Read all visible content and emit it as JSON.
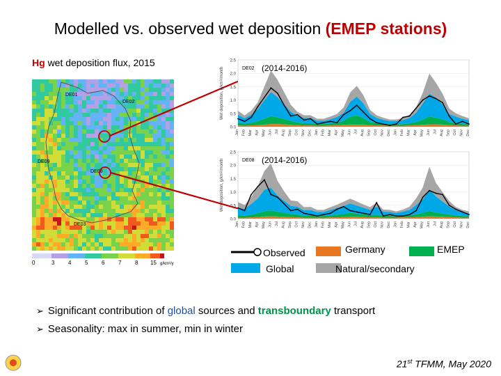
{
  "slide": {
    "title_main": "Modelled vs. observed wet deposition",
    "title_accent": "(EMEP stations)",
    "map_label_hg": "Hg",
    "map_label_rest": "wet deposition flux, 2015",
    "footer_number": "21",
    "footer_suffix": "st",
    "footer_rest": "TFMM, May 2020",
    "bullets": [
      {
        "prefix": "Significant contribution of ",
        "global": "global",
        "mid": " sources and ",
        "transboundary": "transboundary",
        "suffix": " transport"
      },
      {
        "text": "Seasonality: max in summer, min in winter"
      }
    ]
  },
  "map": {
    "station_labels": [
      "DE01",
      "DE02",
      "DE03",
      "DE08",
      "DE09"
    ],
    "colorbar_ticks": [
      "0",
      "3",
      "4",
      "5",
      "6",
      "7",
      "8",
      "15"
    ],
    "colorbar_unit": "g/km²/y",
    "colorbar_colors": [
      "#d9d9f5",
      "#b4a0e6",
      "#64b4f5",
      "#32c8a0",
      "#78d24b",
      "#d2dc37",
      "#ffaa28",
      "#f05a1e",
      "#c81414"
    ]
  },
  "legend": {
    "observed": "Observed",
    "global": "Global",
    "germany": "Germany",
    "natural": "Natural/secondary",
    "emep": "EMEP"
  },
  "colors": {
    "accent_red": "#c00000",
    "global": "#00a8e8",
    "germany": "#e87722",
    "natural": "#a6a6a6",
    "emep": "#00b050",
    "observed": "#000000"
  },
  "chart_data": [
    {
      "type": "area",
      "station": "DE02",
      "period": "(2014-2016)",
      "ylabel": "Wet deposition, g/km²/month",
      "ylim": [
        0,
        2.5
      ],
      "yticks": [
        "0.0",
        "0.5",
        "1.0",
        "1.5",
        "2.0",
        "2.5"
      ],
      "categories": [
        "Jan",
        "Feb",
        "Mar",
        "Apr",
        "May",
        "Jun",
        "Jul",
        "Aug",
        "Sep",
        "Oct",
        "Nov",
        "Dec",
        "Jan",
        "Feb",
        "Mar",
        "Apr",
        "May",
        "Jun",
        "Jul",
        "Aug",
        "Sep",
        "Oct",
        "Nov",
        "Dec",
        "Jan",
        "Feb",
        "Mar",
        "Apr",
        "May",
        "Jun",
        "Jul",
        "Aug",
        "Sep",
        "Oct",
        "Nov",
        "Dec"
      ],
      "series": [
        {
          "name": "Germany",
          "values": [
            0.05,
            0.04,
            0.05,
            0.06,
            0.08,
            0.1,
            0.1,
            0.09,
            0.07,
            0.06,
            0.05,
            0.05,
            0.04,
            0.04,
            0.05,
            0.06,
            0.07,
            0.08,
            0.08,
            0.08,
            0.06,
            0.05,
            0.05,
            0.04,
            0.04,
            0.04,
            0.05,
            0.06,
            0.07,
            0.09,
            0.09,
            0.08,
            0.06,
            0.05,
            0.04,
            0.04
          ]
        },
        {
          "name": "EMEP",
          "values": [
            0.1,
            0.08,
            0.1,
            0.15,
            0.22,
            0.3,
            0.25,
            0.2,
            0.15,
            0.1,
            0.08,
            0.08,
            0.06,
            0.06,
            0.08,
            0.1,
            0.15,
            0.3,
            0.35,
            0.25,
            0.12,
            0.08,
            0.06,
            0.05,
            0.05,
            0.06,
            0.08,
            0.12,
            0.2,
            0.3,
            0.25,
            0.2,
            0.12,
            0.08,
            0.06,
            0.05
          ]
        },
        {
          "name": "Global",
          "values": [
            0.3,
            0.2,
            0.3,
            0.45,
            0.7,
            0.9,
            0.75,
            0.55,
            0.35,
            0.25,
            0.2,
            0.2,
            0.12,
            0.12,
            0.15,
            0.2,
            0.3,
            0.55,
            0.7,
            0.55,
            0.3,
            0.2,
            0.15,
            0.12,
            0.12,
            0.15,
            0.2,
            0.35,
            0.6,
            0.85,
            0.75,
            0.55,
            0.3,
            0.25,
            0.2,
            0.15
          ]
        },
        {
          "name": "Natural/secondary",
          "values": [
            0.15,
            0.1,
            0.15,
            0.25,
            0.5,
            0.8,
            0.65,
            0.45,
            0.25,
            0.15,
            0.1,
            0.1,
            0.08,
            0.08,
            0.1,
            0.12,
            0.2,
            0.35,
            0.4,
            0.3,
            0.15,
            0.1,
            0.08,
            0.06,
            0.06,
            0.08,
            0.12,
            0.2,
            0.4,
            0.75,
            0.55,
            0.4,
            0.2,
            0.12,
            0.1,
            0.08
          ]
        }
      ],
      "observed": [
        0.3,
        0.2,
        0.35,
        0.75,
        1.1,
        1.45,
        1.25,
        0.8,
        0.4,
        0.45,
        0.25,
        0.3,
        0.1,
        0.15,
        0.2,
        0.15,
        0.45,
        0.6,
        0.8,
        0.55,
        0.3,
        0.15,
        0.1,
        0.05,
        0.1,
        0.35,
        0.4,
        0.7,
        1.0,
        1.15,
        1.05,
        0.9,
        0.4,
        0.1,
        0.2,
        0.1
      ]
    },
    {
      "type": "area",
      "station": "DE08",
      "period": "(2014-2016)",
      "ylabel": "Wet deposition, g/km²/month",
      "ylim": [
        0,
        2.5
      ],
      "yticks": [
        "0.0",
        "0.5",
        "1.0",
        "1.5",
        "2.0",
        "2.5"
      ],
      "categories": [
        "Jan",
        "Feb",
        "Mar",
        "Apr",
        "May",
        "Jun",
        "Jul",
        "Aug",
        "Sep",
        "Oct",
        "Nov",
        "Dec",
        "Jan",
        "Feb",
        "Mar",
        "Apr",
        "May",
        "Jun",
        "Jul",
        "Aug",
        "Sep",
        "Oct",
        "Nov",
        "Dec",
        "Jan",
        "Feb",
        "Mar",
        "Apr",
        "May",
        "Jun",
        "Jul",
        "Aug",
        "Sep",
        "Oct",
        "Nov",
        "Dec"
      ],
      "series": [
        {
          "name": "Germany",
          "values": [
            0.04,
            0.04,
            0.05,
            0.06,
            0.08,
            0.09,
            0.08,
            0.07,
            0.06,
            0.05,
            0.04,
            0.04,
            0.04,
            0.04,
            0.05,
            0.05,
            0.06,
            0.07,
            0.07,
            0.06,
            0.05,
            0.05,
            0.04,
            0.04,
            0.04,
            0.05,
            0.05,
            0.06,
            0.07,
            0.09,
            0.08,
            0.07,
            0.06,
            0.05,
            0.04,
            0.04
          ]
        },
        {
          "name": "EMEP",
          "values": [
            0.08,
            0.07,
            0.1,
            0.15,
            0.2,
            0.22,
            0.18,
            0.15,
            0.12,
            0.1,
            0.07,
            0.08,
            0.06,
            0.06,
            0.08,
            0.1,
            0.12,
            0.15,
            0.12,
            0.1,
            0.08,
            0.1,
            0.07,
            0.06,
            0.05,
            0.06,
            0.08,
            0.1,
            0.15,
            0.2,
            0.15,
            0.12,
            0.1,
            0.07,
            0.06,
            0.05
          ]
        },
        {
          "name": "Global",
          "values": [
            0.3,
            0.25,
            0.4,
            0.55,
            0.8,
            0.85,
            0.6,
            0.45,
            0.3,
            0.3,
            0.2,
            0.2,
            0.15,
            0.15,
            0.2,
            0.25,
            0.3,
            0.35,
            0.3,
            0.25,
            0.2,
            0.3,
            0.15,
            0.15,
            0.12,
            0.15,
            0.2,
            0.35,
            0.5,
            0.8,
            0.6,
            0.45,
            0.3,
            0.2,
            0.15,
            0.12
          ]
        },
        {
          "name": "Natural/secondary",
          "values": [
            0.2,
            0.15,
            0.25,
            0.45,
            0.7,
            0.9,
            0.55,
            0.35,
            0.2,
            0.2,
            0.12,
            0.12,
            0.08,
            0.08,
            0.1,
            0.12,
            0.15,
            0.18,
            0.15,
            0.12,
            0.1,
            0.15,
            0.08,
            0.08,
            0.06,
            0.08,
            0.12,
            0.25,
            0.45,
            0.85,
            0.5,
            0.35,
            0.2,
            0.12,
            0.08,
            0.06
          ]
        }
      ],
      "observed": [
        0.4,
        0.3,
        0.9,
        1.2,
        1.45,
        0.9,
        0.8,
        0.55,
        0.3,
        0.35,
        0.2,
        0.15,
        0.1,
        0.15,
        0.2,
        0.35,
        0.45,
        0.3,
        0.25,
        0.2,
        0.15,
        0.6,
        0.1,
        0.15,
        0.1,
        0.1,
        0.15,
        0.3,
        0.8,
        1.05,
        0.95,
        0.9,
        0.5,
        0.35,
        0.25,
        0.15
      ]
    }
  ]
}
